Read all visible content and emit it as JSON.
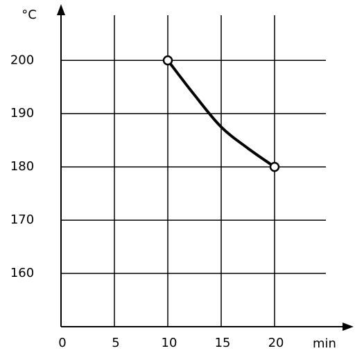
{
  "chart_data": {
    "type": "line",
    "x_label": "min",
    "y_label": "°C",
    "x": [
      10,
      12.5,
      15,
      17.5,
      20
    ],
    "series": [
      {
        "color": "#000000",
        "values": [
          200,
          193.5,
          187.5,
          183.5,
          180
        ]
      }
    ],
    "xlim": [
      0,
      27.4
    ],
    "xticks": [
      0,
      5,
      10,
      15,
      20
    ],
    "ylim": [
      150,
      209
    ],
    "yticks": [
      160,
      170,
      180,
      190,
      200
    ],
    "grid": true
  }
}
